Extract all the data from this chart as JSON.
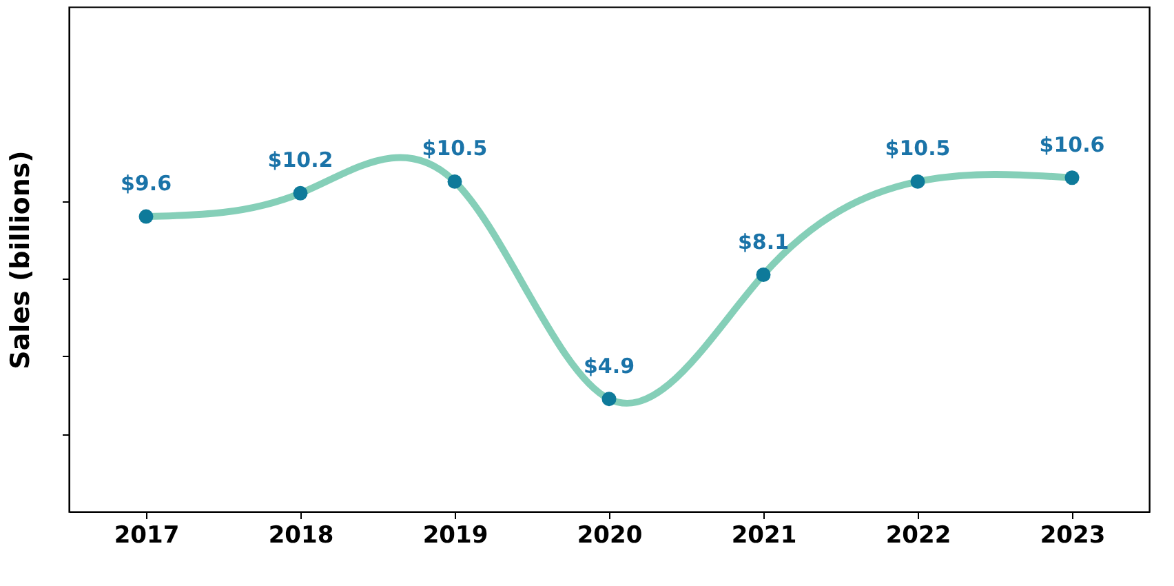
{
  "chart_data": {
    "type": "line",
    "ylabel": "Sales (billions)",
    "categories": [
      "2017",
      "2018",
      "2019",
      "2020",
      "2021",
      "2022",
      "2023"
    ],
    "series": [
      {
        "color": "#85cfb8",
        "values": [
          9.6,
          10.2,
          10.5,
          4.9,
          8.1,
          10.5,
          10.6
        ],
        "colors": [
          "#0e7a9a",
          "#0e7a9a",
          "#0e7a9a",
          "#0e7a9a",
          "#0e7a9a",
          "#0e7a9a",
          "#0e7a9a"
        ],
        "value_labels": [
          "$9.6",
          "$10.2",
          "$10.5",
          "$4.9",
          "$8.1",
          "$10.5",
          "$10.6"
        ]
      }
    ],
    "ylim": [
      2,
      15
    ],
    "yticks": [
      {
        "value": 4,
        "label": null
      },
      {
        "value": 6,
        "label": null
      },
      {
        "value": 8,
        "label": null
      },
      {
        "value": 10,
        "label": null
      }
    ],
    "marker": "circle",
    "line_style": "solid",
    "grid": false,
    "tick_labels": "x"
  }
}
